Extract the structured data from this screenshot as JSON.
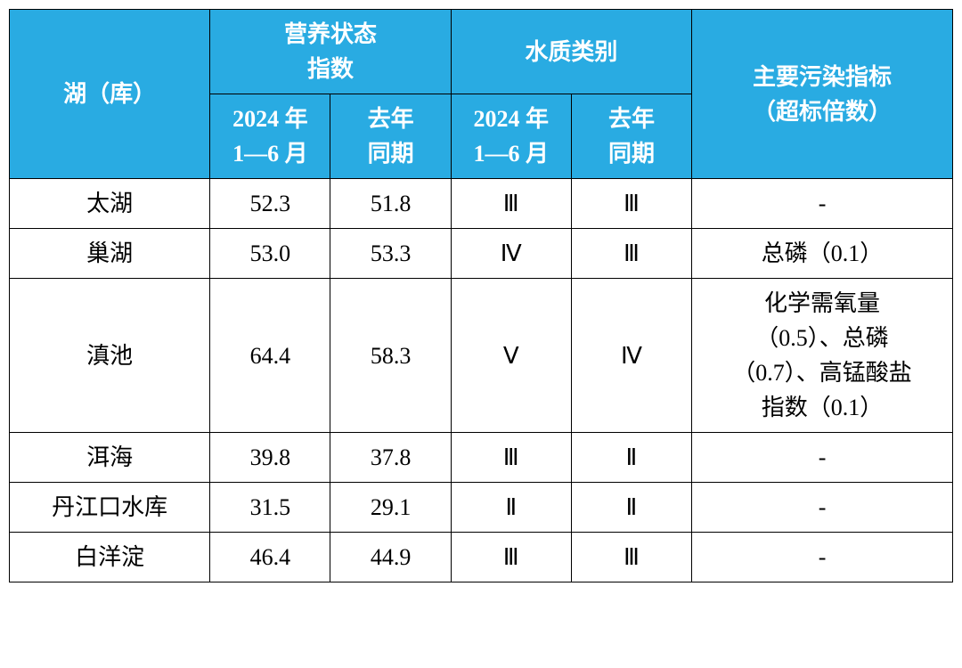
{
  "table": {
    "header": {
      "lake": "湖（库）",
      "nutrition_index": "营养状态\n指数",
      "water_quality": "水质类别",
      "pollutant": "主要污染指标\n（超标倍数）",
      "period_current": "2024 年\n1—6 月",
      "period_last": "去年\n同期"
    },
    "colors": {
      "header_bg": "#29abe2",
      "header_text": "#ffffff",
      "cell_bg": "#ffffff",
      "cell_text": "#000000",
      "border": "#000000"
    },
    "column_widths": {
      "lake": 200,
      "sub": 120,
      "pollutant": 260
    },
    "font_size": 26,
    "rows": [
      {
        "lake": "太湖",
        "nutri_current": "52.3",
        "nutri_last": "51.8",
        "quality_current": "Ⅲ",
        "quality_last": "Ⅲ",
        "pollutant": "-"
      },
      {
        "lake": "巢湖",
        "nutri_current": "53.0",
        "nutri_last": "53.3",
        "quality_current": "Ⅳ",
        "quality_last": "Ⅲ",
        "pollutant": "总磷（0.1）"
      },
      {
        "lake": "滇池",
        "nutri_current": "64.4",
        "nutri_last": "58.3",
        "quality_current": "Ⅴ",
        "quality_last": "Ⅳ",
        "pollutant": "化学需氧量\n（0.5）、总磷\n（0.7）、高锰酸盐\n指数（0.1）"
      },
      {
        "lake": "洱海",
        "nutri_current": "39.8",
        "nutri_last": "37.8",
        "quality_current": "Ⅲ",
        "quality_last": "Ⅱ",
        "pollutant": "-"
      },
      {
        "lake": "丹江口水库",
        "nutri_current": "31.5",
        "nutri_last": "29.1",
        "quality_current": "Ⅱ",
        "quality_last": "Ⅱ",
        "pollutant": "-"
      },
      {
        "lake": "白洋淀",
        "nutri_current": "46.4",
        "nutri_last": "44.9",
        "quality_current": "Ⅲ",
        "quality_last": "Ⅲ",
        "pollutant": "-"
      }
    ]
  }
}
